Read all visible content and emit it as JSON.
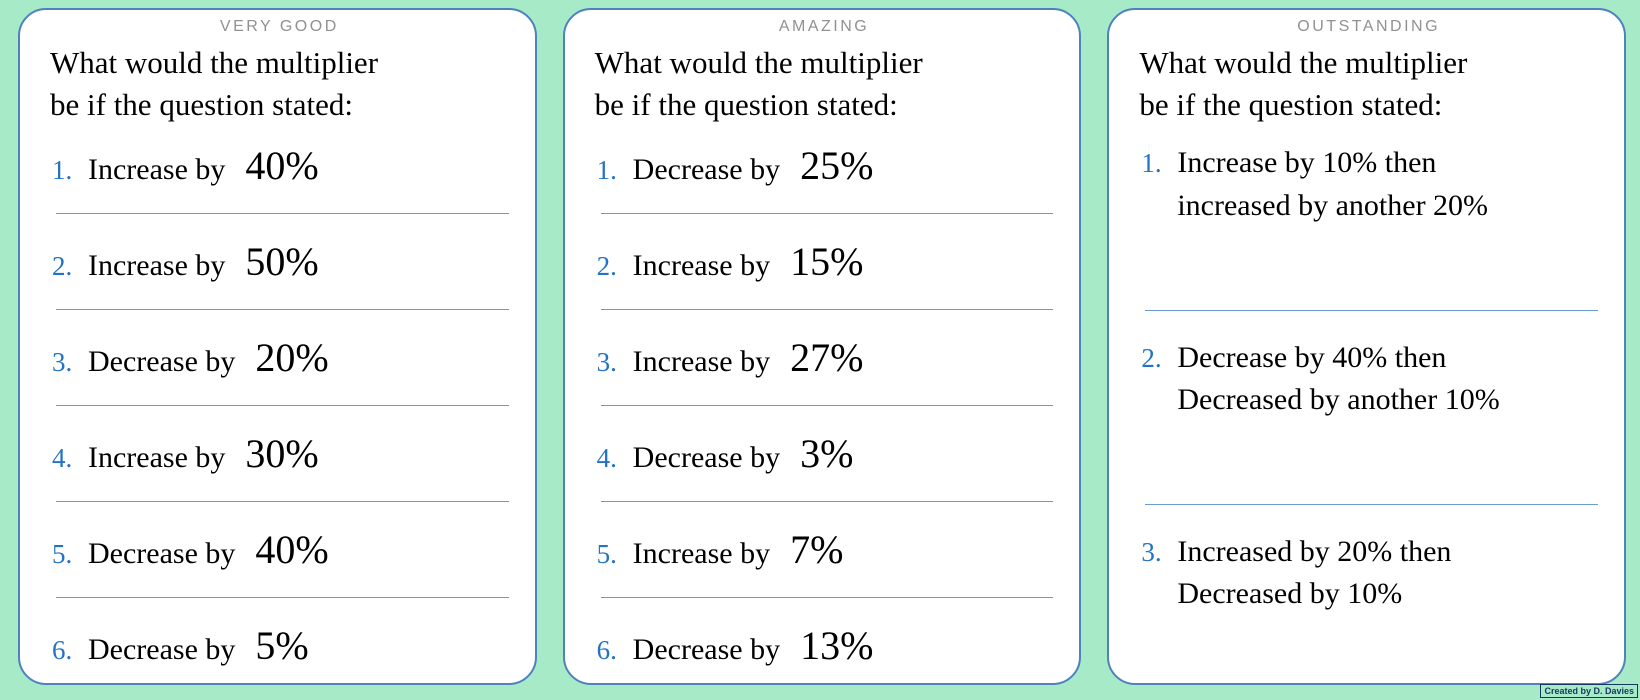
{
  "page": {
    "background_color": "#a7eac8",
    "card_border_color": "#4f81bd",
    "separator_color": "#6c9bd2",
    "number_color": "#2273c3",
    "title_color": "#919191",
    "credit": "Created by D. Davies"
  },
  "shared": {
    "question_line1": "What would the multiplier",
    "question_line2": "be if the question stated:"
  },
  "panels": [
    {
      "title": "VERY GOOD",
      "items": [
        {
          "num": "1.",
          "label": "Increase by",
          "value": "40%"
        },
        {
          "num": "2.",
          "label": "Increase by",
          "value": "50%"
        },
        {
          "num": "3.",
          "label": "Decrease by",
          "value": "20%"
        },
        {
          "num": "4.",
          "label": "Increase by",
          "value": "30%"
        },
        {
          "num": "5.",
          "label": "Decrease by",
          "value": "40%"
        },
        {
          "num": "6.",
          "label": "Decrease by",
          "value": "5%"
        }
      ]
    },
    {
      "title": "AMAZING",
      "items": [
        {
          "num": "1.",
          "label": "Decrease by",
          "value": "25%"
        },
        {
          "num": "2.",
          "label": "Increase by",
          "value": "15%"
        },
        {
          "num": "3.",
          "label": "Increase by",
          "value": "27%"
        },
        {
          "num": "4.",
          "label": "Decrease by",
          "value": "3%"
        },
        {
          "num": "5.",
          "label": "Increase by",
          "value": "7%"
        },
        {
          "num": "6.",
          "label": "Decrease by",
          "value": "13%"
        }
      ]
    },
    {
      "title": "OUTSTANDING",
      "items": [
        {
          "num": "1.",
          "line1": "Increase by 10% then",
          "line2": "increased by another 20%"
        },
        {
          "num": "2.",
          "line1": "Decrease by 40% then",
          "line2": "Decreased by another 10%"
        },
        {
          "num": "3.",
          "line1": "Increased by 20% then",
          "line2": "Decreased by 10%"
        }
      ]
    }
  ]
}
